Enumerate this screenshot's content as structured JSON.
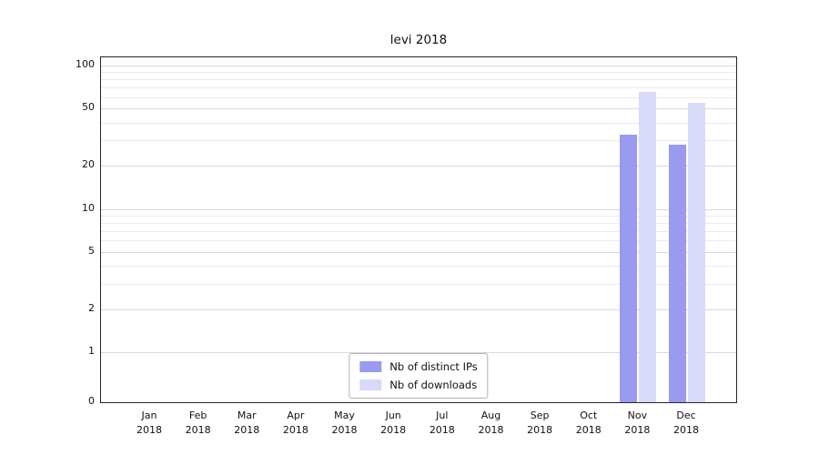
{
  "title": "levi 2018",
  "chart_data": {
    "type": "bar",
    "title": "levi 2018",
    "xlabel": "",
    "ylabel": "",
    "y_scale": "symlog",
    "ylim": [
      0,
      100
    ],
    "yticks": [
      0,
      1,
      2,
      5,
      10,
      20,
      50,
      100
    ],
    "minor_gridlines": [
      3,
      4,
      6,
      7,
      8,
      9,
      30,
      40,
      60,
      70,
      80,
      90
    ],
    "grid": true,
    "legend_position": "bottom-center",
    "categories": [
      {
        "line1": "Jan",
        "line2": "2018"
      },
      {
        "line1": "Feb",
        "line2": "2018"
      },
      {
        "line1": "Mar",
        "line2": "2018"
      },
      {
        "line1": "Apr",
        "line2": "2018"
      },
      {
        "line1": "May",
        "line2": "2018"
      },
      {
        "line1": "Jun",
        "line2": "2018"
      },
      {
        "line1": "Jul",
        "line2": "2018"
      },
      {
        "line1": "Aug",
        "line2": "2018"
      },
      {
        "line1": "Sep",
        "line2": "2018"
      },
      {
        "line1": "Oct",
        "line2": "2018"
      },
      {
        "line1": "Nov",
        "line2": "2018"
      },
      {
        "line1": "Dec",
        "line2": "2018"
      }
    ],
    "series": [
      {
        "name": "Nb of distinct IPs",
        "color": "#9a9aee",
        "values": [
          0,
          0,
          0,
          0,
          0,
          0,
          0,
          0,
          0,
          0,
          33,
          28
        ]
      },
      {
        "name": "Nb of downloads",
        "color": "#d9d9f8",
        "values": [
          0,
          0,
          0,
          0,
          0,
          0,
          0,
          0,
          0,
          0,
          65,
          55
        ]
      }
    ]
  }
}
